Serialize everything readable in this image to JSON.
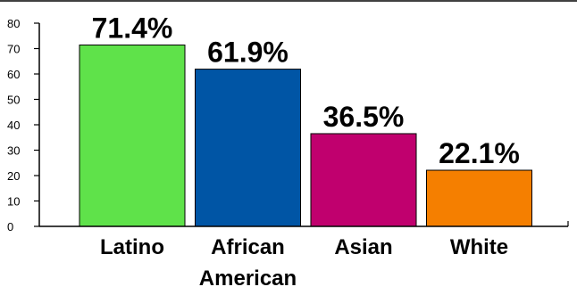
{
  "chart_data": {
    "type": "bar",
    "categories": [
      [
        "Latino"
      ],
      [
        "African",
        "American"
      ],
      [
        "Asian"
      ],
      [
        "White"
      ]
    ],
    "values": [
      71.4,
      61.9,
      36.5,
      22.1
    ],
    "value_labels": [
      "71.4%",
      "61.9%",
      "36.5%",
      "22.1%"
    ],
    "colors": [
      "#5fe24a",
      "#0055a5",
      "#c0006e",
      "#f57f00"
    ],
    "ylim": [
      0,
      80
    ],
    "yticks": [
      0,
      10,
      20,
      30,
      40,
      50,
      60,
      70,
      80
    ],
    "grid": false,
    "legend": "none"
  }
}
